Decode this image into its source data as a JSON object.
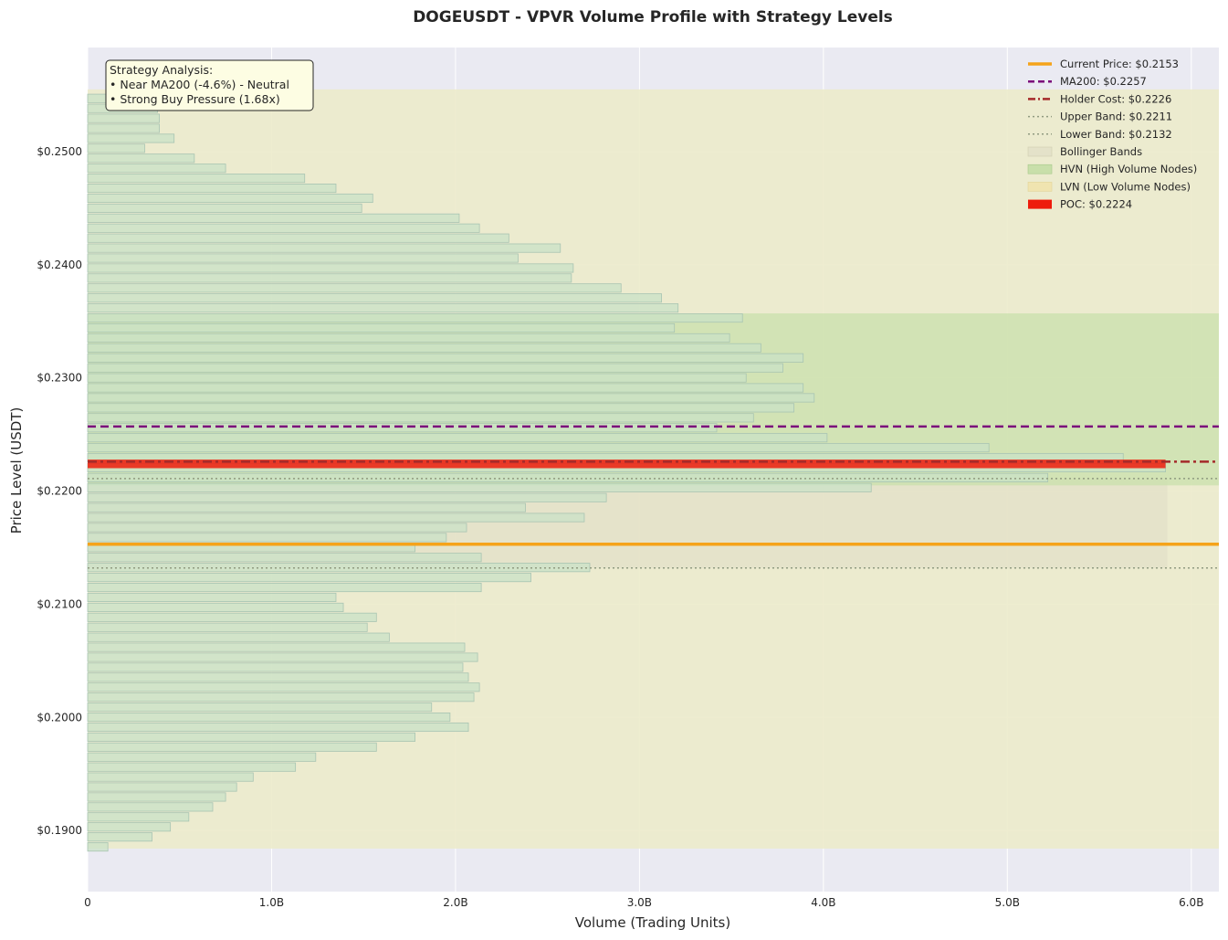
{
  "chart_data": {
    "type": "bar",
    "orientation": "horizontal",
    "title": "DOGEUSDT - VPVR Volume Profile with Strategy Levels",
    "xlabel": "Volume (Trading Units)",
    "ylabel": "Price Level (USDT)",
    "xlim": [
      0,
      6.15
    ],
    "ylim": [
      0.1846,
      0.2592
    ],
    "x_ticks": [
      {
        "value": 0,
        "label": "0"
      },
      {
        "value": 1,
        "label": "1.0B"
      },
      {
        "value": 2,
        "label": "2.0B"
      },
      {
        "value": 3,
        "label": "3.0B"
      },
      {
        "value": 4,
        "label": "4.0B"
      },
      {
        "value": 5,
        "label": "5.0B"
      },
      {
        "value": 6,
        "label": "6.0B"
      }
    ],
    "y_ticks": [
      {
        "value": 0.19,
        "label": "$0.1900"
      },
      {
        "value": 0.2,
        "label": "$0.2000"
      },
      {
        "value": 0.21,
        "label": "$0.2100"
      },
      {
        "value": 0.22,
        "label": "$0.2200"
      },
      {
        "value": 0.23,
        "label": "$0.2300"
      },
      {
        "value": 0.24,
        "label": "$0.2400"
      },
      {
        "value": 0.25,
        "label": "$0.2500"
      }
    ],
    "grid": true,
    "legend_position": "top-right",
    "price_start": 0.18855,
    "price_step": 0.000882,
    "bar_height": 0.00075,
    "volumes": [
      0.11,
      0.35,
      0.45,
      0.55,
      0.68,
      0.75,
      0.81,
      0.9,
      1.13,
      1.24,
      1.57,
      1.78,
      2.07,
      1.97,
      1.87,
      2.1,
      2.13,
      2.07,
      2.04,
      2.12,
      2.05,
      1.64,
      1.52,
      1.57,
      1.39,
      1.35,
      2.14,
      2.41,
      2.73,
      2.14,
      1.78,
      1.95,
      2.06,
      2.7,
      2.38,
      2.82,
      4.26,
      5.22,
      5.86,
      5.63,
      4.9,
      4.02,
      3.42,
      3.62,
      3.84,
      3.95,
      3.89,
      3.58,
      3.78,
      3.89,
      3.66,
      3.49,
      3.19,
      3.56,
      3.21,
      3.12,
      2.9,
      2.63,
      2.64,
      2.34,
      2.57,
      2.29,
      2.13,
      2.02,
      1.49,
      1.55,
      1.35,
      1.18,
      0.75,
      0.58,
      0.31,
      0.47,
      0.39,
      0.39,
      0.38,
      0.38
    ],
    "levels": {
      "current_price": 0.2153,
      "ma200": 0.2257,
      "holder_cost": 0.2226,
      "upper_band": 0.2211,
      "lower_band": 0.2132,
      "poc": 0.2224
    },
    "zones": {
      "lvn": {
        "from": 0.1884,
        "to": 0.2555,
        "xmax": 6.15
      },
      "bollinger": {
        "from": 0.2132,
        "to": 0.2211,
        "xmax": 5.87
      },
      "hvn": {
        "from": 0.2205,
        "to": 0.2357,
        "xmax": 6.15
      }
    },
    "legend": [
      {
        "key": "current",
        "label": "Current Price: $0.2153"
      },
      {
        "key": "ma200",
        "label": "MA200: $0.2257"
      },
      {
        "key": "holder",
        "label": "Holder Cost: $0.2226"
      },
      {
        "key": "upper",
        "label": "Upper Band: $0.2211"
      },
      {
        "key": "lower",
        "label": "Lower Band: $0.2132"
      },
      {
        "key": "bollinger",
        "label": "Bollinger Bands"
      },
      {
        "key": "hvn",
        "label": "HVN (High Volume Nodes)"
      },
      {
        "key": "lvn",
        "label": "LVN (Low Volume Nodes)"
      },
      {
        "key": "poc",
        "label": "POC: $0.2224"
      }
    ],
    "annotation": {
      "lines": [
        "Strategy Analysis:",
        "• Near MA200 (-4.6%) - Neutral",
        "• Strong Buy Pressure (1.68x)"
      ]
    }
  },
  "colors": {
    "plot_bg": "#eaeaf2",
    "bar_fill": "#c9e1c7",
    "bar_edge": "#a8c4b2",
    "lvn_fill": "#ecebcb",
    "hvn_fill": "#c8dfaa",
    "bollinger_fill": "#e4e2c9",
    "current_price": "#f5a31a",
    "ma200": "#7b0a7b",
    "holder_cost": "#a52a2a",
    "band_line": "#909a80",
    "poc": "#ee1c0c",
    "annotation_bg": "#fdfde3"
  }
}
